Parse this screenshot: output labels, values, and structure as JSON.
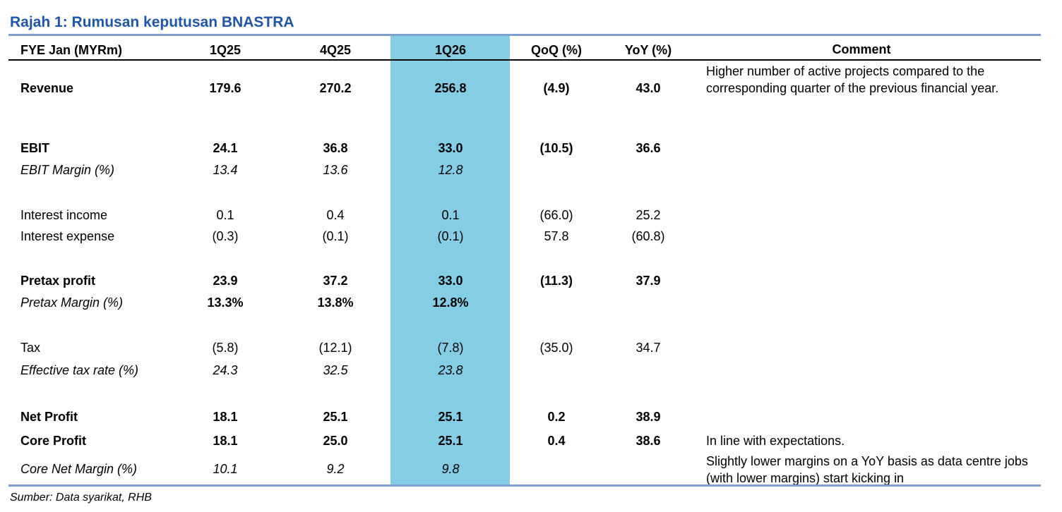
{
  "title": "Rajah 1: Rumusan keputusan BNASTRA",
  "header": {
    "label": "FYE Jan (MYRm)",
    "col1": "1Q25",
    "col2": "4Q25",
    "col3": "1Q26",
    "col4": "QoQ (%)",
    "col5": "YoY (%)",
    "comment": "Comment"
  },
  "rows": [
    {
      "label": "Revenue",
      "v1": "179.6",
      "v2": "270.2",
      "v3": "256.8",
      "v4": "(4.9)",
      "v5": "43.0"
    },
    {
      "label": "EBIT",
      "v1": "24.1",
      "v2": "36.8",
      "v3": "33.0",
      "v4": "(10.5)",
      "v5": "36.6"
    },
    {
      "label": "EBIT Margin (%)",
      "v1": "13.4",
      "v2": "13.6",
      "v3": "12.8",
      "v4": "",
      "v5": ""
    },
    {
      "label": "Interest income",
      "v1": "0.1",
      "v2": "0.4",
      "v3": "0.1",
      "v4": "(66.0)",
      "v5": "25.2"
    },
    {
      "label": "Interest expense",
      "v1": "(0.3)",
      "v2": "(0.1)",
      "v3": "(0.1)",
      "v4": "57.8",
      "v5": "(60.8)"
    },
    {
      "label": "Pretax profit",
      "v1": "23.9",
      "v2": "37.2",
      "v3": "33.0",
      "v4": "(11.3)",
      "v5": "37.9"
    },
    {
      "label": "Pretax Margin (%)",
      "v1": "13.3%",
      "v2": "13.8%",
      "v3": "12.8%",
      "v4": "",
      "v5": ""
    },
    {
      "label": "Tax",
      "v1": "(5.8)",
      "v2": "(12.1)",
      "v3": "(7.8)",
      "v4": "(35.0)",
      "v5": "34.7"
    },
    {
      "label": "Effective tax rate (%)",
      "v1": "24.3",
      "v2": "32.5",
      "v3": "23.8",
      "v4": "",
      "v5": ""
    },
    {
      "label": "Net Profit",
      "v1": "18.1",
      "v2": "25.1",
      "v3": "25.1",
      "v4": "0.2",
      "v5": "38.9"
    },
    {
      "label": "Core Profit",
      "v1": "18.1",
      "v2": "25.0",
      "v3": "25.1",
      "v4": "0.4",
      "v5": "38.6"
    },
    {
      "label": "Core Net Margin (%)",
      "v1": "10.1",
      "v2": "9.2",
      "v3": "9.8",
      "v4": "",
      "v5": ""
    }
  ],
  "comments": {
    "revenue": "Higher number of active projects compared to the corresponding quarter of the previous financial year.",
    "core_profit": "In line with expectations.",
    "core_margin": "Slightly lower margins on a YoY basis as data centre jobs (with lower margins) start kicking in"
  },
  "source": "Sumber: Data syarikat, RHB",
  "colors": {
    "title": "#1f56a8",
    "rule": "#7f9fd1",
    "highlight": "#84cde4"
  }
}
